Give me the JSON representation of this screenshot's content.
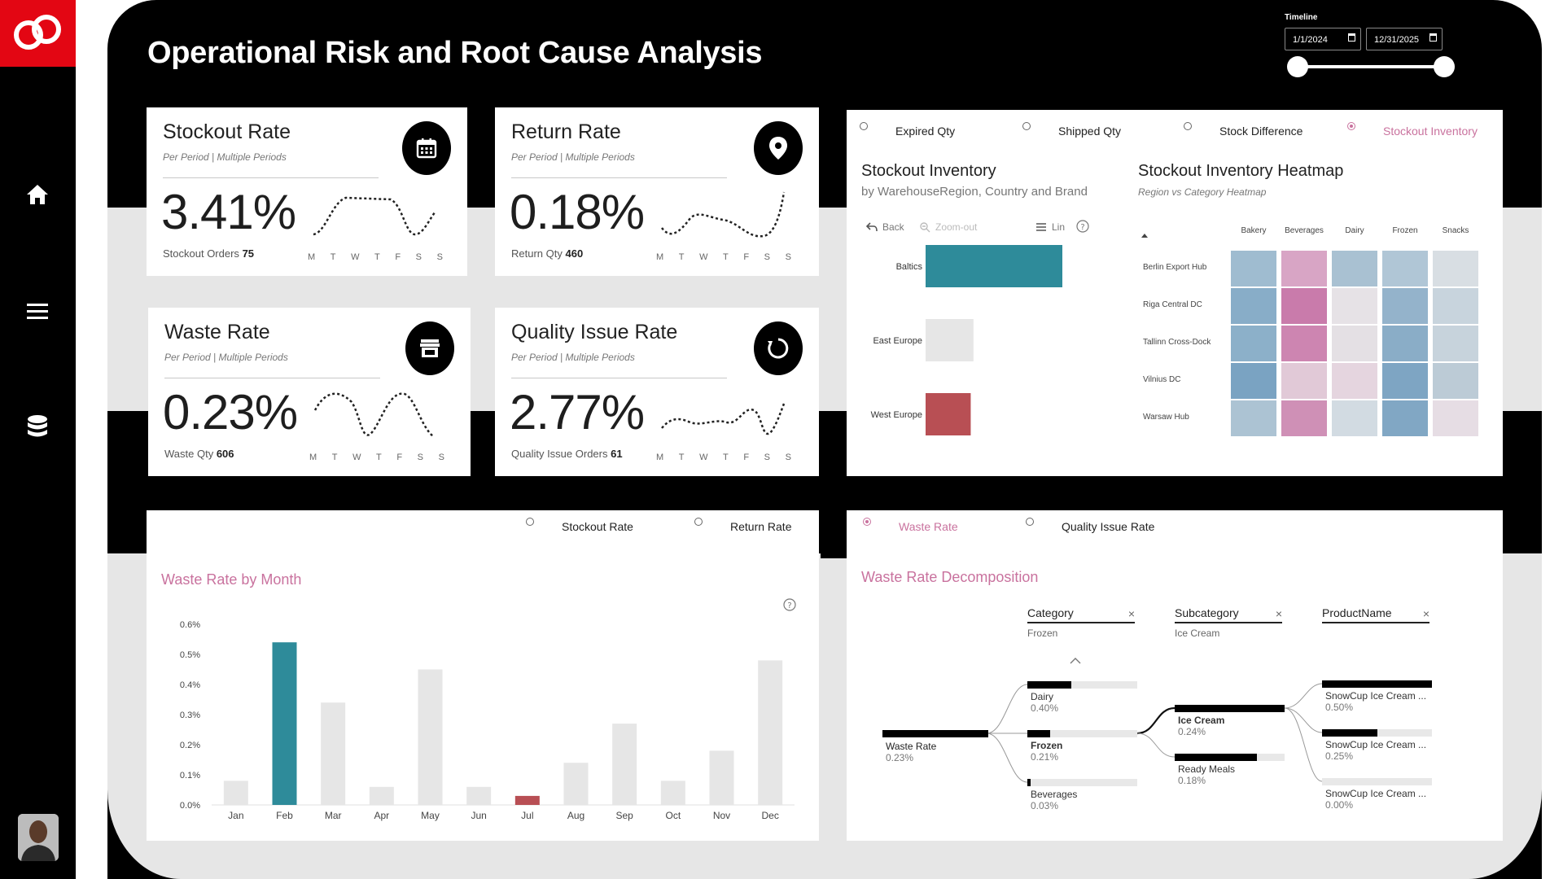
{
  "title": "Operational Risk and Root Cause Analysis",
  "nav": {
    "icons": [
      "home-icon",
      "menu-icon",
      "database-icon"
    ]
  },
  "timeline": {
    "label": "Timeline",
    "start": "1/1/2024",
    "end": "12/31/2025"
  },
  "kpis": [
    {
      "title": "Stockout Rate",
      "sub": "Per Period  |  Multiple Periods",
      "value": "3.41%",
      "foot_label": "Stockout Orders",
      "foot_value": "75",
      "icon": "calendar-icon"
    },
    {
      "title": "Return Rate",
      "sub": "Per Period  |  Multiple Periods",
      "value": "0.18%",
      "foot_label": "Return Qty",
      "foot_value": "460",
      "icon": "location-pin-icon"
    },
    {
      "title": "Waste Rate",
      "sub": "Per Period  |  Multiple Periods",
      "value": "0.23%",
      "foot_label": "Waste Qty",
      "foot_value": "606",
      "icon": "store-icon"
    },
    {
      "title": "Quality Issue Rate",
      "sub": "Per Period  |  Multiple Periods",
      "value": "2.77%",
      "foot_label": "Quality Issue Orders",
      "foot_value": "61",
      "icon": "refresh-icon"
    }
  ],
  "days": [
    "M",
    "T",
    "W",
    "T",
    "F",
    "S",
    "S"
  ],
  "top_toggles": [
    {
      "label": "Expired Qty",
      "active": false
    },
    {
      "label": "Shipped Qty",
      "active": false
    },
    {
      "label": "Stock Difference",
      "active": false
    },
    {
      "label": "Stockout Inventory",
      "active": true
    }
  ],
  "inventory": {
    "title": "Stockout Inventory",
    "subtitle": "by WarehouseRegion, Country and Brand",
    "controls": {
      "back": "Back",
      "zoom": "Zoom-out",
      "lin": "Lin"
    }
  },
  "heatmap": {
    "title": "Stockout Inventory Heatmap",
    "subtitle": "Region vs Category Heatmap",
    "columns": [
      "Bakery",
      "Beverages",
      "Dairy",
      "Frozen",
      "Snacks"
    ],
    "rows": [
      "Berlin Export Hub",
      "Riga Central DC",
      "Tallinn Cross-Dock",
      "Vilnius DC",
      "Warsaw Hub"
    ],
    "colors": [
      [
        "#9fbcd0",
        "#d8a5c5",
        "#a9c1d2",
        "#b0c6d6",
        "#d8dee3"
      ],
      [
        "#88adc8",
        "#c97bab",
        "#e6e2e6",
        "#94b3cb",
        "#c8d4dd"
      ],
      [
        "#8cb0c9",
        "#cd85b1",
        "#e4e0e4",
        "#8aadc7",
        "#c7d3dc"
      ],
      [
        "#7aa3c2",
        "#e1c9d7",
        "#e5d5df",
        "#7ea5c3",
        "#bccbd6"
      ],
      [
        "#acc3d3",
        "#cf90b6",
        "#d2dbe2",
        "#81a7c4",
        "#e6dde4"
      ]
    ]
  },
  "bottom_toggles": [
    {
      "label": "Stockout Rate",
      "active": false
    },
    {
      "label": "Return Rate",
      "active": false
    },
    {
      "label": "Waste Rate",
      "active": true
    },
    {
      "label": "Quality Issue Rate",
      "active": false
    }
  ],
  "decomp": {
    "title": "Waste Rate Decomposition",
    "headers": [
      {
        "label": "Category",
        "value": "Frozen"
      },
      {
        "label": "Subcategory",
        "value": "Ice Cream"
      },
      {
        "label": "ProductName",
        "value": ""
      }
    ],
    "root": {
      "label": "Waste Rate",
      "value": "0.23%"
    },
    "level1": [
      {
        "label": "Dairy",
        "value": "0.40%",
        "frac": 0.4
      },
      {
        "label": "Frozen",
        "value": "0.21%",
        "frac": 0.21
      },
      {
        "label": "Beverages",
        "value": "0.03%",
        "frac": 0.03
      }
    ],
    "level2": [
      {
        "label": "Ice Cream",
        "value": "0.24%",
        "frac": 1.0
      },
      {
        "label": "Ready Meals",
        "value": "0.18%",
        "frac": 0.75
      }
    ],
    "level3": [
      {
        "label": "SnowCup Ice Cream ...",
        "value": "0.50%",
        "frac": 1.0
      },
      {
        "label": "SnowCup Ice Cream ...",
        "value": "0.25%",
        "frac": 0.5
      },
      {
        "label": "SnowCup Ice Cream ...",
        "value": "0.00%",
        "frac": 0.0
      }
    ]
  },
  "chart_data": [
    {
      "type": "bar",
      "title": "Waste Rate by Month",
      "categories": [
        "Jan",
        "Feb",
        "Mar",
        "Apr",
        "May",
        "Jun",
        "Jul",
        "Aug",
        "Sep",
        "Oct",
        "Nov",
        "Dec"
      ],
      "values": [
        0.08,
        0.54,
        0.34,
        0.06,
        0.45,
        0.06,
        0.03,
        0.14,
        0.27,
        0.08,
        0.18,
        0.48
      ],
      "highlight": {
        "Feb": "#2e8b9a",
        "Jul": "#b84f54"
      },
      "ylim": [
        0,
        0.6
      ],
      "yticks": [
        "0.0%",
        "0.1%",
        "0.2%",
        "0.3%",
        "0.4%",
        "0.5%",
        "0.6%"
      ],
      "default_color": "#e6e6e6"
    },
    {
      "type": "bar",
      "orientation": "horizontal",
      "categories": [
        "Baltics",
        "East Europe",
        "West Europe"
      ],
      "values": [
        100,
        35,
        33
      ],
      "colors": [
        "#2e8b9a",
        "#e6e6e6",
        "#b84f54"
      ]
    }
  ]
}
